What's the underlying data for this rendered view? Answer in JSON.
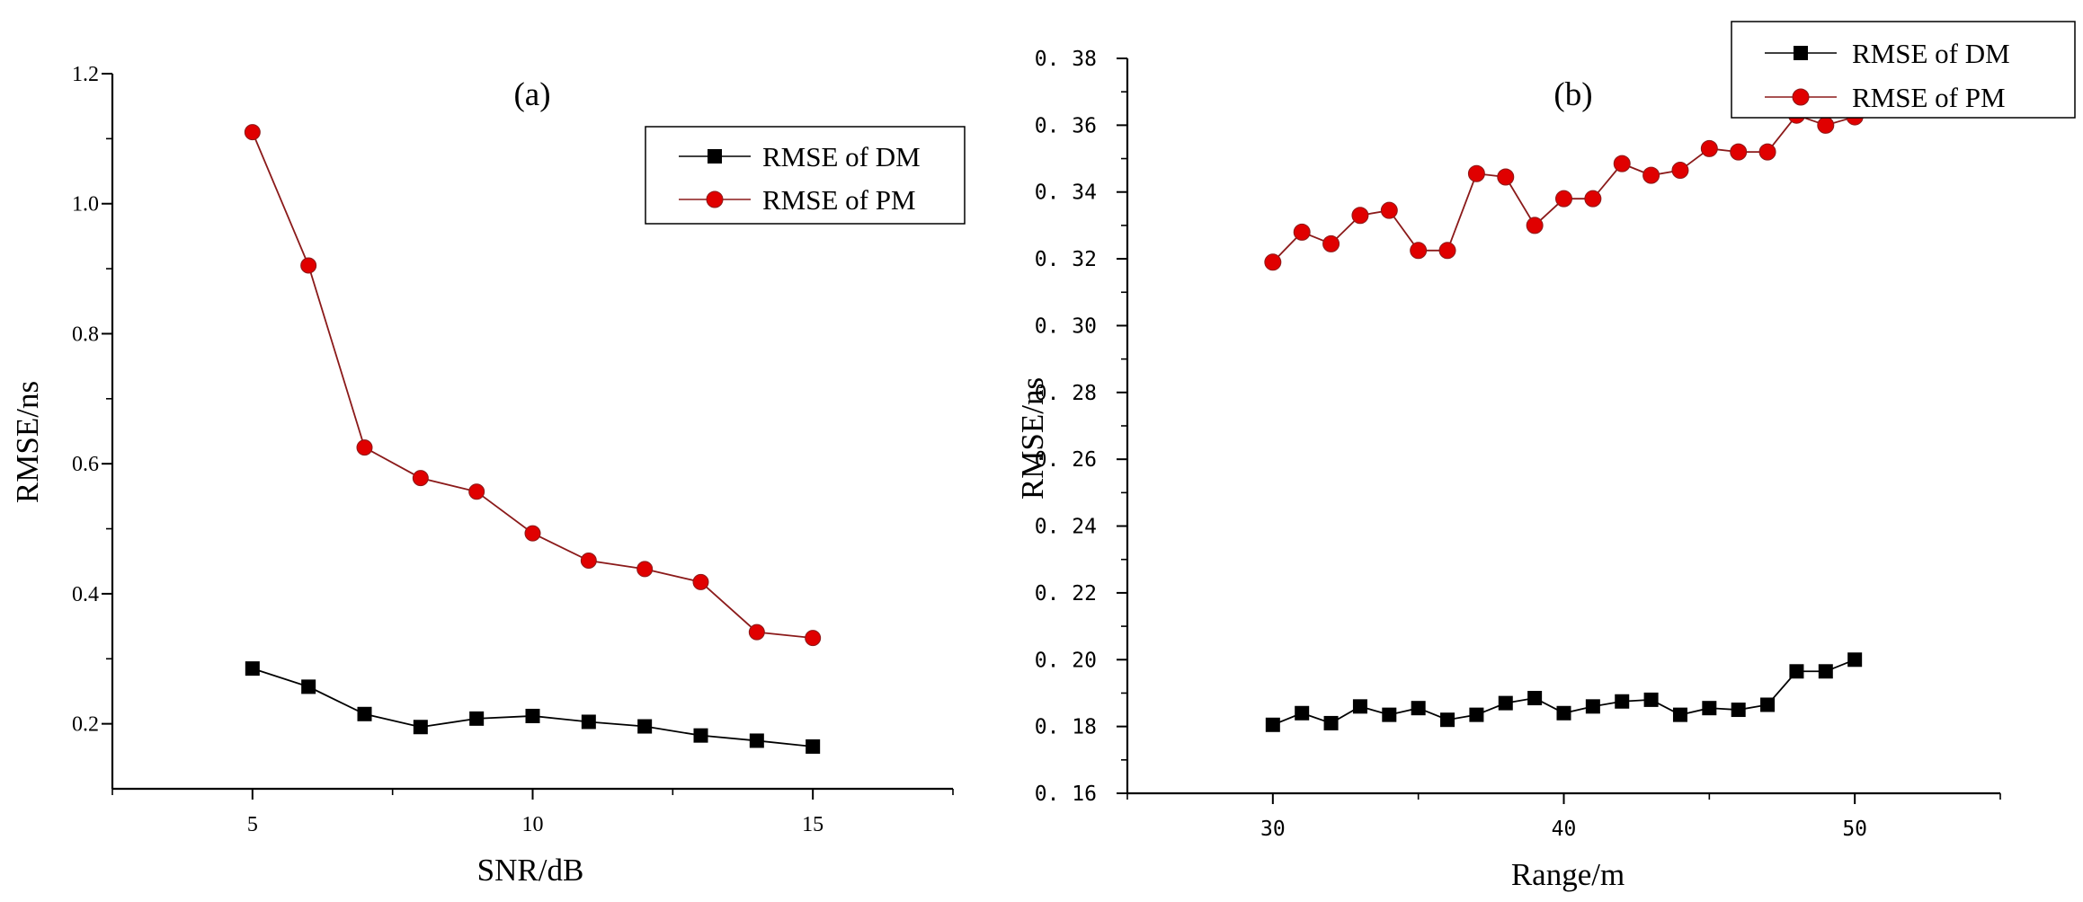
{
  "chart_data": [
    {
      "type": "line",
      "panel_label": "(a)",
      "xlabel": "SNR/dB",
      "ylabel": "RMSE/ns",
      "xlim": [
        2.5,
        17.5
      ],
      "ylim": [
        0.1,
        1.2
      ],
      "x_ticks": [
        5,
        10,
        15
      ],
      "y_ticks": [
        0.2,
        0.4,
        0.6,
        0.8,
        1.0,
        1.2
      ],
      "y_tick_labels": [
        "0.2",
        "0.4",
        "0.6",
        "0.8",
        "1.0",
        "1.2"
      ],
      "legend_position": "top-right",
      "x": [
        5,
        6,
        7,
        8,
        9,
        10,
        11,
        12,
        13,
        14,
        15
      ],
      "series": [
        {
          "name": "RMSE of DM",
          "marker": "square",
          "color": "#000000",
          "values": [
            0.285,
            0.257,
            0.215,
            0.195,
            0.208,
            0.212,
            0.203,
            0.196,
            0.182,
            0.174,
            0.165
          ]
        },
        {
          "name": "RMSE of PM",
          "marker": "circle",
          "color": "#e00000",
          "line_color": "#8b1a1a",
          "values": [
            1.11,
            0.905,
            0.625,
            0.578,
            0.557,
            0.493,
            0.451,
            0.438,
            0.418,
            0.341,
            0.332
          ]
        }
      ]
    },
    {
      "type": "line",
      "panel_label": "(b)",
      "xlabel": "Range/m",
      "ylabel": "RMSE/ns",
      "xlim": [
        25,
        55
      ],
      "ylim": [
        0.16,
        0.38
      ],
      "x_ticks": [
        30,
        40,
        50
      ],
      "y_ticks": [
        0.16,
        0.18,
        0.2,
        0.22,
        0.24,
        0.26,
        0.28,
        0.3,
        0.32,
        0.34,
        0.36,
        0.38
      ],
      "y_tick_labels": [
        "0. 16",
        "0. 18",
        "0. 20",
        "0. 22",
        "0. 24",
        "0. 26",
        "0. 28",
        "0. 30",
        "0. 32",
        "0. 34",
        "0. 36",
        "0. 38"
      ],
      "legend_position": "top-right",
      "x": [
        30,
        31,
        32,
        33,
        34,
        35,
        36,
        37,
        38,
        39,
        40,
        41,
        42,
        43,
        44,
        45,
        46,
        47,
        48,
        49,
        50
      ],
      "series": [
        {
          "name": "RMSE of DM",
          "marker": "square",
          "color": "#000000",
          "values": [
            0.1805,
            0.184,
            0.181,
            0.186,
            0.1835,
            0.1855,
            0.182,
            0.1835,
            0.187,
            0.1885,
            0.184,
            0.186,
            0.1875,
            0.188,
            0.1835,
            0.1855,
            0.185,
            0.1865,
            0.1965,
            0.1965,
            0.2
          ]
        },
        {
          "name": "RMSE of PM",
          "marker": "circle",
          "color": "#e00000",
          "line_color": "#8b1a1a",
          "values": [
            0.319,
            0.328,
            0.3245,
            0.333,
            0.3345,
            0.3225,
            0.3225,
            0.3455,
            0.3445,
            0.33,
            0.338,
            0.338,
            0.3485,
            0.345,
            0.3465,
            0.353,
            0.352,
            0.352,
            0.363,
            0.36,
            0.3625
          ]
        }
      ]
    }
  ]
}
